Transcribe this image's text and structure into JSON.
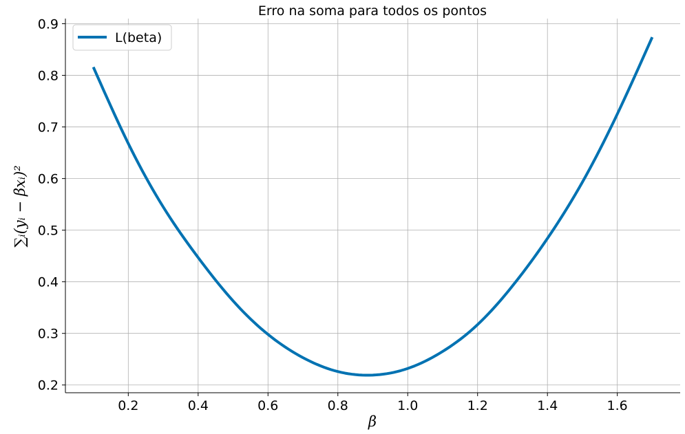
{
  "chart_data": {
    "type": "line",
    "title": "Erro na soma para todos os pontos",
    "xlabel": "β",
    "ylabel": "∑ᵢ(yᵢ − βxᵢ)²",
    "xlim": [
      0.02,
      1.78
    ],
    "ylim": [
      0.185,
      0.91
    ],
    "xticks": [
      0.2,
      0.4,
      0.6,
      0.8,
      1.0,
      1.2,
      1.4,
      1.6
    ],
    "xtick_labels": [
      "0.2",
      "0.4",
      "0.6",
      "0.8",
      "1.0",
      "1.2",
      "1.4",
      "1.6"
    ],
    "yticks": [
      0.2,
      0.3,
      0.4,
      0.5,
      0.6,
      0.7,
      0.8,
      0.9
    ],
    "ytick_labels": [
      "0.2",
      "0.3",
      "0.4",
      "0.5",
      "0.6",
      "0.7",
      "0.8",
      "0.9"
    ],
    "grid": true,
    "legend_position": "top-left",
    "series": [
      {
        "name": "L(beta)",
        "color": "#0072b2",
        "x": [
          0.1,
          0.2,
          0.3,
          0.4,
          0.5,
          0.6,
          0.7,
          0.8,
          0.88,
          1.0,
          1.1,
          1.2,
          1.3,
          1.4,
          1.5,
          1.6,
          1.7
        ],
        "y": [
          0.816,
          0.668,
          0.545,
          0.447,
          0.363,
          0.298,
          0.253,
          0.226,
          0.219,
          0.232,
          0.265,
          0.317,
          0.392,
          0.484,
          0.593,
          0.725,
          0.874
        ]
      }
    ]
  }
}
